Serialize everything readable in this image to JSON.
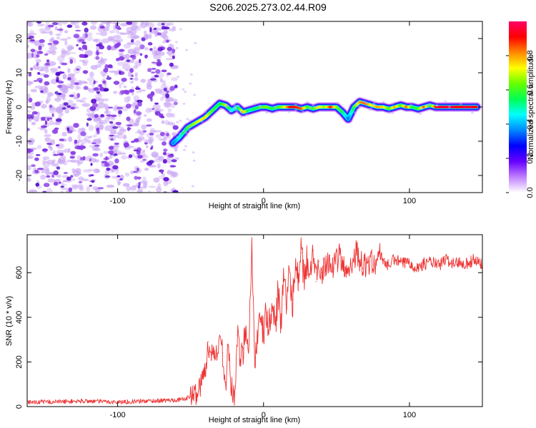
{
  "title": "S206.2025.273.02.44.R09",
  "colors": {
    "speckle": "#8a2be2",
    "snr_line": "#ee3333",
    "colormap": [
      "#ffffff",
      "#c080ff",
      "#6600ff",
      "#0000ff",
      "#0088ff",
      "#00ffff",
      "#00ff55",
      "#66ff00",
      "#ffff00",
      "#ff8800",
      "#ff0000",
      "#ff0066"
    ]
  },
  "chart_data": [
    {
      "type": "heatmap",
      "name": "spectrogram",
      "xlabel": "Height of straight line (km)",
      "ylabel": "Frequency (Hz)",
      "xlim": [
        -162,
        150
      ],
      "ylim": [
        -25,
        25
      ],
      "x_ticks": [
        -100,
        0,
        100
      ],
      "x_tick_labels": [
        "-100",
        "0",
        "100"
      ],
      "y_ticks": [
        -20,
        -10,
        0,
        10,
        20
      ],
      "y_tick_labels": [
        "-20",
        "-10",
        "0",
        "10",
        "20"
      ],
      "noise_region_x": [
        -162,
        -60
      ],
      "ridge": {
        "x": [
          -62,
          -58,
          -52,
          -46,
          -40,
          -35,
          -30,
          -26,
          -22,
          -18,
          -14,
          -10,
          -6,
          -2,
          2,
          6,
          10,
          14,
          18,
          22,
          26,
          30,
          34,
          38,
          42,
          46,
          50,
          54,
          58,
          62,
          66,
          70,
          74,
          78,
          82,
          86,
          90,
          94,
          98,
          102,
          106,
          110,
          114,
          118,
          122,
          126,
          130,
          134,
          138,
          142,
          146
        ],
        "y": [
          -10.5,
          -9,
          -6,
          -4.5,
          -3,
          -1,
          1,
          0.5,
          -1,
          0,
          -1.5,
          -1,
          -0.5,
          0,
          0,
          -0.5,
          0,
          0,
          0,
          0,
          -0.5,
          0,
          -0.5,
          0,
          0,
          0,
          0,
          -1.5,
          -3.5,
          0,
          1.5,
          1,
          0.5,
          0,
          0,
          -0.5,
          0,
          0.5,
          0,
          0,
          -0.5,
          0,
          0.5,
          0,
          0,
          0,
          0,
          0,
          0,
          0,
          0
        ],
        "amplitude": [
          0.35,
          0.45,
          0.6,
          0.7,
          0.75,
          0.6,
          0.55,
          0.7,
          0.45,
          0.5,
          0.8,
          0.5,
          0.55,
          0.6,
          0.65,
          0.55,
          0.6,
          0.7,
          0.9,
          0.9,
          0.85,
          0.6,
          0.6,
          0.75,
          0.65,
          0.9,
          0.65,
          0.55,
          0.35,
          0.6,
          0.8,
          0.85,
          0.7,
          0.8,
          0.75,
          0.6,
          0.8,
          0.6,
          0.85,
          0.55,
          0.6,
          0.85,
          0.55,
          0.9,
          0.95,
          0.95,
          0.95,
          0.9,
          0.95,
          0.95,
          0.9
        ]
      }
    },
    {
      "type": "colorbar",
      "name": "amplitude-colorbar",
      "label": "Normalized spectral amplitude",
      "range": [
        0,
        1
      ],
      "ticks": [
        0.0,
        0.2,
        0.4,
        0.6,
        0.8
      ],
      "tick_labels": [
        "0.0",
        "0.2",
        "0.4",
        "0.6",
        "0.8"
      ]
    },
    {
      "type": "line",
      "name": "snr",
      "xlabel": "Height of straight line (km)",
      "ylabel": "SNR (10 * v/v)",
      "xlim": [
        -162,
        150
      ],
      "ylim": [
        0,
        770
      ],
      "x_ticks": [
        -100,
        0,
        100
      ],
      "x_tick_labels": [
        "-100",
        "0",
        "100"
      ],
      "y_ticks": [
        0,
        200,
        400,
        600
      ],
      "y_tick_labels": [
        "0",
        "200",
        "400",
        "600"
      ],
      "series": [
        {
          "name": "SNR",
          "x": [
            -162,
            -140,
            -120,
            -100,
            -80,
            -65,
            -55,
            -50,
            -46,
            -43,
            -40,
            -38,
            -36,
            -34,
            -32,
            -30,
            -28,
            -26,
            -24,
            -22,
            -20,
            -18,
            -16,
            -14,
            -12,
            -10,
            -8,
            -6,
            -4,
            -2,
            0,
            2,
            4,
            6,
            8,
            10,
            12,
            14,
            16,
            18,
            20,
            22,
            24,
            26,
            28,
            30,
            32,
            34,
            36,
            38,
            40,
            44,
            48,
            52,
            56,
            60,
            64,
            68,
            72,
            76,
            80,
            85,
            90,
            95,
            100,
            105,
            110,
            115,
            120,
            125,
            130,
            135,
            140,
            145,
            150
          ],
          "values": [
            20,
            22,
            25,
            20,
            25,
            28,
            32,
            45,
            60,
            100,
            160,
            290,
            210,
            260,
            220,
            320,
            240,
            110,
            270,
            80,
            30,
            320,
            200,
            260,
            360,
            280,
            720,
            220,
            300,
            380,
            330,
            420,
            360,
            440,
            380,
            500,
            400,
            560,
            440,
            600,
            480,
            620,
            520,
            690,
            560,
            640,
            590,
            700,
            560,
            650,
            600,
            660,
            620,
            680,
            600,
            640,
            700,
            620,
            650,
            640,
            680,
            630,
            660,
            640,
            650,
            620,
            640,
            650,
            630,
            660,
            640,
            650,
            640,
            660,
            640
          ]
        }
      ]
    }
  ]
}
